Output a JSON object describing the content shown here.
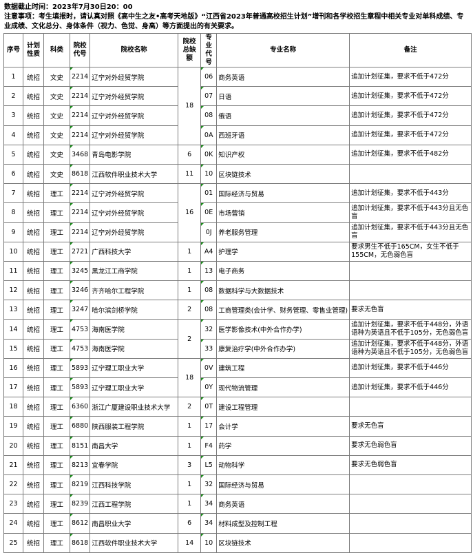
{
  "notice": {
    "deadline": "数据截止时间：2023年7月30日20：00",
    "note": "注意事项：考生填报时，请认真对照《高中生之友•高考天地版》“江西省2023年普通高校招生计划”增刊和各学校招生章程中相关专业对单科成绩、专业成绩、文化总分、身体条件（视力、色觉、身高）等方面提出的有关要求。"
  },
  "headers": [
    "序号",
    "计划性质",
    "科类",
    "院校代号",
    "院校名称",
    "院校总缺额",
    "专业代号",
    "专业名称",
    "备注"
  ],
  "rows": [
    {
      "no": "1",
      "type": "统招",
      "cat": "文史",
      "code": "2214",
      "school": "辽宁对外经贸学院",
      "quota": "18",
      "quota_rowspan": 4,
      "mcode": "06",
      "major": "商务英语",
      "remark": "追加计划征集，要求不低于472分"
    },
    {
      "no": "2",
      "type": "统招",
      "cat": "文史",
      "code": "2214",
      "school": "辽宁对外经贸学院",
      "quota": null,
      "mcode": "07",
      "major": "日语",
      "remark": "追加计划征集，要求不低于472分"
    },
    {
      "no": "3",
      "type": "统招",
      "cat": "文史",
      "code": "2214",
      "school": "辽宁对外经贸学院",
      "quota": null,
      "mcode": "08",
      "major": "俄语",
      "remark": "追加计划征集，要求不低于472分"
    },
    {
      "no": "4",
      "type": "统招",
      "cat": "文史",
      "code": "2214",
      "school": "辽宁对外经贸学院",
      "quota": null,
      "mcode": "0A",
      "major": "西班牙语",
      "remark": "追加计划征集，要求不低于472分"
    },
    {
      "no": "5",
      "type": "统招",
      "cat": "文史",
      "code": "3468",
      "school": "青岛电影学院",
      "quota": "6",
      "quota_rowspan": 1,
      "mcode": "0K",
      "major": "知识产权",
      "remark": "追加计划征集，要求不低于482分"
    },
    {
      "no": "6",
      "type": "统招",
      "cat": "文史",
      "code": "8618",
      "school": "江西软件职业技术大学",
      "quota": "11",
      "quota_rowspan": 1,
      "mcode": "10",
      "major": "区块链技术",
      "remark": ""
    },
    {
      "no": "7",
      "type": "统招",
      "cat": "理工",
      "code": "2214",
      "school": "辽宁对外经贸学院",
      "quota": "16",
      "quota_rowspan": 3,
      "mcode": "01",
      "major": "国际经济与贸易",
      "remark": "追加计划征集，要求不低于443分"
    },
    {
      "no": "8",
      "type": "统招",
      "cat": "理工",
      "code": "2214",
      "school": "辽宁对外经贸学院",
      "quota": null,
      "mcode": "0E",
      "major": "市场营销",
      "remark": "追加计划征集，要求不低于443分且无色盲"
    },
    {
      "no": "9",
      "type": "统招",
      "cat": "理工",
      "code": "2214",
      "school": "辽宁对外经贸学院",
      "quota": null,
      "mcode": "0J",
      "major": "养老服务管理",
      "remark": "追加计划征集，要求不低于443分且无色盲"
    },
    {
      "no": "10",
      "type": "统招",
      "cat": "理工",
      "code": "2721",
      "school": "广西科技大学",
      "quota": "1",
      "quota_rowspan": 1,
      "mcode": "A4",
      "major": "护理学",
      "remark": "要求男生不低于165CM，女生不低于155CM，无色弱色盲"
    },
    {
      "no": "11",
      "type": "统招",
      "cat": "理工",
      "code": "3245",
      "school": "黑龙江工商学院",
      "quota": "1",
      "quota_rowspan": 1,
      "mcode": "13",
      "major": "电子商务",
      "remark": ""
    },
    {
      "no": "12",
      "type": "统招",
      "cat": "理工",
      "code": "3246",
      "school": "齐齐哈尔工程学院",
      "quota": "1",
      "quota_rowspan": 1,
      "mcode": "08",
      "major": "数据科学与大数据技术",
      "remark": ""
    },
    {
      "no": "13",
      "type": "统招",
      "cat": "理工",
      "code": "3247",
      "school": "哈尔滨剑桥学院",
      "quota": "2",
      "quota_rowspan": 1,
      "mcode": "08",
      "major": "工商管理类(会计学、财务管理、零售业管理)",
      "remark": "要求无色盲"
    },
    {
      "no": "14",
      "type": "统招",
      "cat": "理工",
      "code": "4753",
      "school": "海南医学院",
      "quota": "2",
      "quota_rowspan": 2,
      "mcode": "32",
      "major": "医学影像技术(中外合作办学)",
      "remark": "追加计划征集，要求不低于448分，外语语种为英语且不低于105分，无色弱色盲"
    },
    {
      "no": "15",
      "type": "统招",
      "cat": "理工",
      "code": "4753",
      "school": "海南医学院",
      "quota": null,
      "mcode": "33",
      "major": "康复治疗学(中外合作办学)",
      "remark": "追加计划征集，要求不低于448分，外语语种为英语且不低于105分，无色弱色盲"
    },
    {
      "no": "16",
      "type": "统招",
      "cat": "理工",
      "code": "5893",
      "school": "辽宁理工职业大学",
      "quota": "18",
      "quota_rowspan": 2,
      "mcode": "0V",
      "major": "建筑工程",
      "remark": "追加计划征集，要求不低于446分"
    },
    {
      "no": "17",
      "type": "统招",
      "cat": "理工",
      "code": "5893",
      "school": "辽宁理工职业大学",
      "quota": null,
      "mcode": "0Y",
      "major": "现代物流管理",
      "remark": "追加计划征集，要求不低于446分"
    },
    {
      "no": "18",
      "type": "统招",
      "cat": "理工",
      "code": "6360",
      "school": "浙江广厦建设职业技术大学",
      "quota": "2",
      "quota_rowspan": 1,
      "mcode": "0T",
      "major": "建设工程管理",
      "remark": ""
    },
    {
      "no": "19",
      "type": "统招",
      "cat": "理工",
      "code": "6880",
      "school": "陕西服装工程学院",
      "quota": "1",
      "quota_rowspan": 1,
      "mcode": "17",
      "major": "会计学",
      "remark": "要求无色盲"
    },
    {
      "no": "20",
      "type": "统招",
      "cat": "理工",
      "code": "8151",
      "school": "南昌大学",
      "quota": "1",
      "quota_rowspan": 1,
      "mcode": "F4",
      "major": "药学",
      "remark": "要求无色弱色盲"
    },
    {
      "no": "21",
      "type": "统招",
      "cat": "理工",
      "code": "8213",
      "school": "宜春学院",
      "quota": "3",
      "quota_rowspan": 1,
      "mcode": "L5",
      "major": "动物科学",
      "remark": "要求无色弱色盲"
    },
    {
      "no": "22",
      "type": "统招",
      "cat": "理工",
      "code": "8219",
      "school": "江西科技学院",
      "quota": "1",
      "quota_rowspan": 1,
      "mcode": "32",
      "major": "国际经济与贸易",
      "remark": ""
    },
    {
      "no": "23",
      "type": "统招",
      "cat": "理工",
      "code": "8239",
      "school": "江西工程学院",
      "quota": "1",
      "quota_rowspan": 1,
      "mcode": "34",
      "major": "商务英语",
      "remark": ""
    },
    {
      "no": "24",
      "type": "统招",
      "cat": "理工",
      "code": "8612",
      "school": "南昌职业大学",
      "quota": "6",
      "quota_rowspan": 1,
      "mcode": "34",
      "major": "材料成型及控制工程",
      "remark": ""
    },
    {
      "no": "25",
      "type": "统招",
      "cat": "理工",
      "code": "8618",
      "school": "江西软件职业技术大学",
      "quota": "14",
      "quota_rowspan": 1,
      "mcode": "10",
      "major": "区块链技术",
      "remark": ""
    }
  ]
}
